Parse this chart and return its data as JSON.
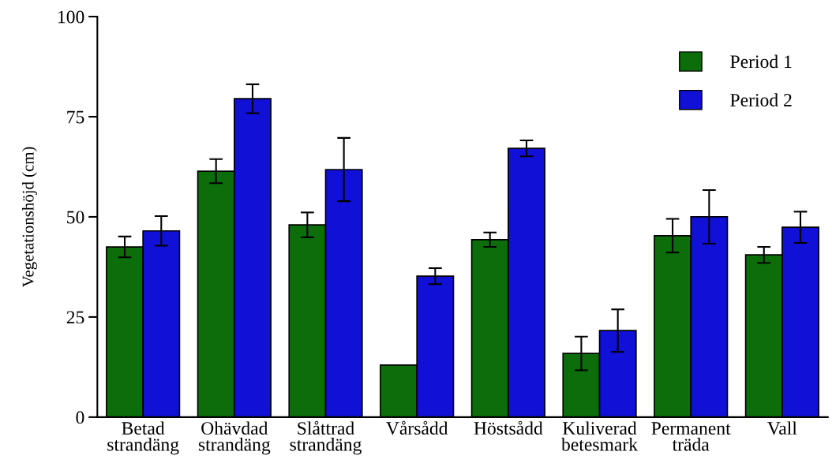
{
  "chart_data": {
    "type": "bar",
    "ylabel": "Vegetationshöjd (cm)",
    "categories": [
      "Betad\nstrandäng",
      "Ohävdad\nstrandäng",
      "Slåttrad\nstrandäng",
      "Vårsådd",
      "Höstsådd",
      "Kuliverad\nbetesmark",
      "Permanent\nträda",
      "Vall"
    ],
    "series": [
      {
        "name": "Period 1",
        "color": "#0b6e0b",
        "values": [
          42.5,
          61.4,
          48,
          13,
          44.3,
          15.9,
          45.3,
          40.5
        ],
        "errors": [
          2.6,
          3,
          3.1,
          null,
          1.8,
          4.2,
          4.2,
          2
        ]
      },
      {
        "name": "Period 2",
        "color": "#1010d6",
        "values": [
          46.5,
          79.5,
          61.8,
          35.2,
          67.1,
          21.6,
          50,
          47.4
        ],
        "errors": [
          3.7,
          3.6,
          7.9,
          2,
          2,
          5.3,
          6.7,
          3.9
        ]
      }
    ],
    "ylim": [
      0,
      100
    ],
    "yticks": [
      0,
      25,
      50,
      75,
      100
    ],
    "grid": false,
    "legend": "top right"
  }
}
